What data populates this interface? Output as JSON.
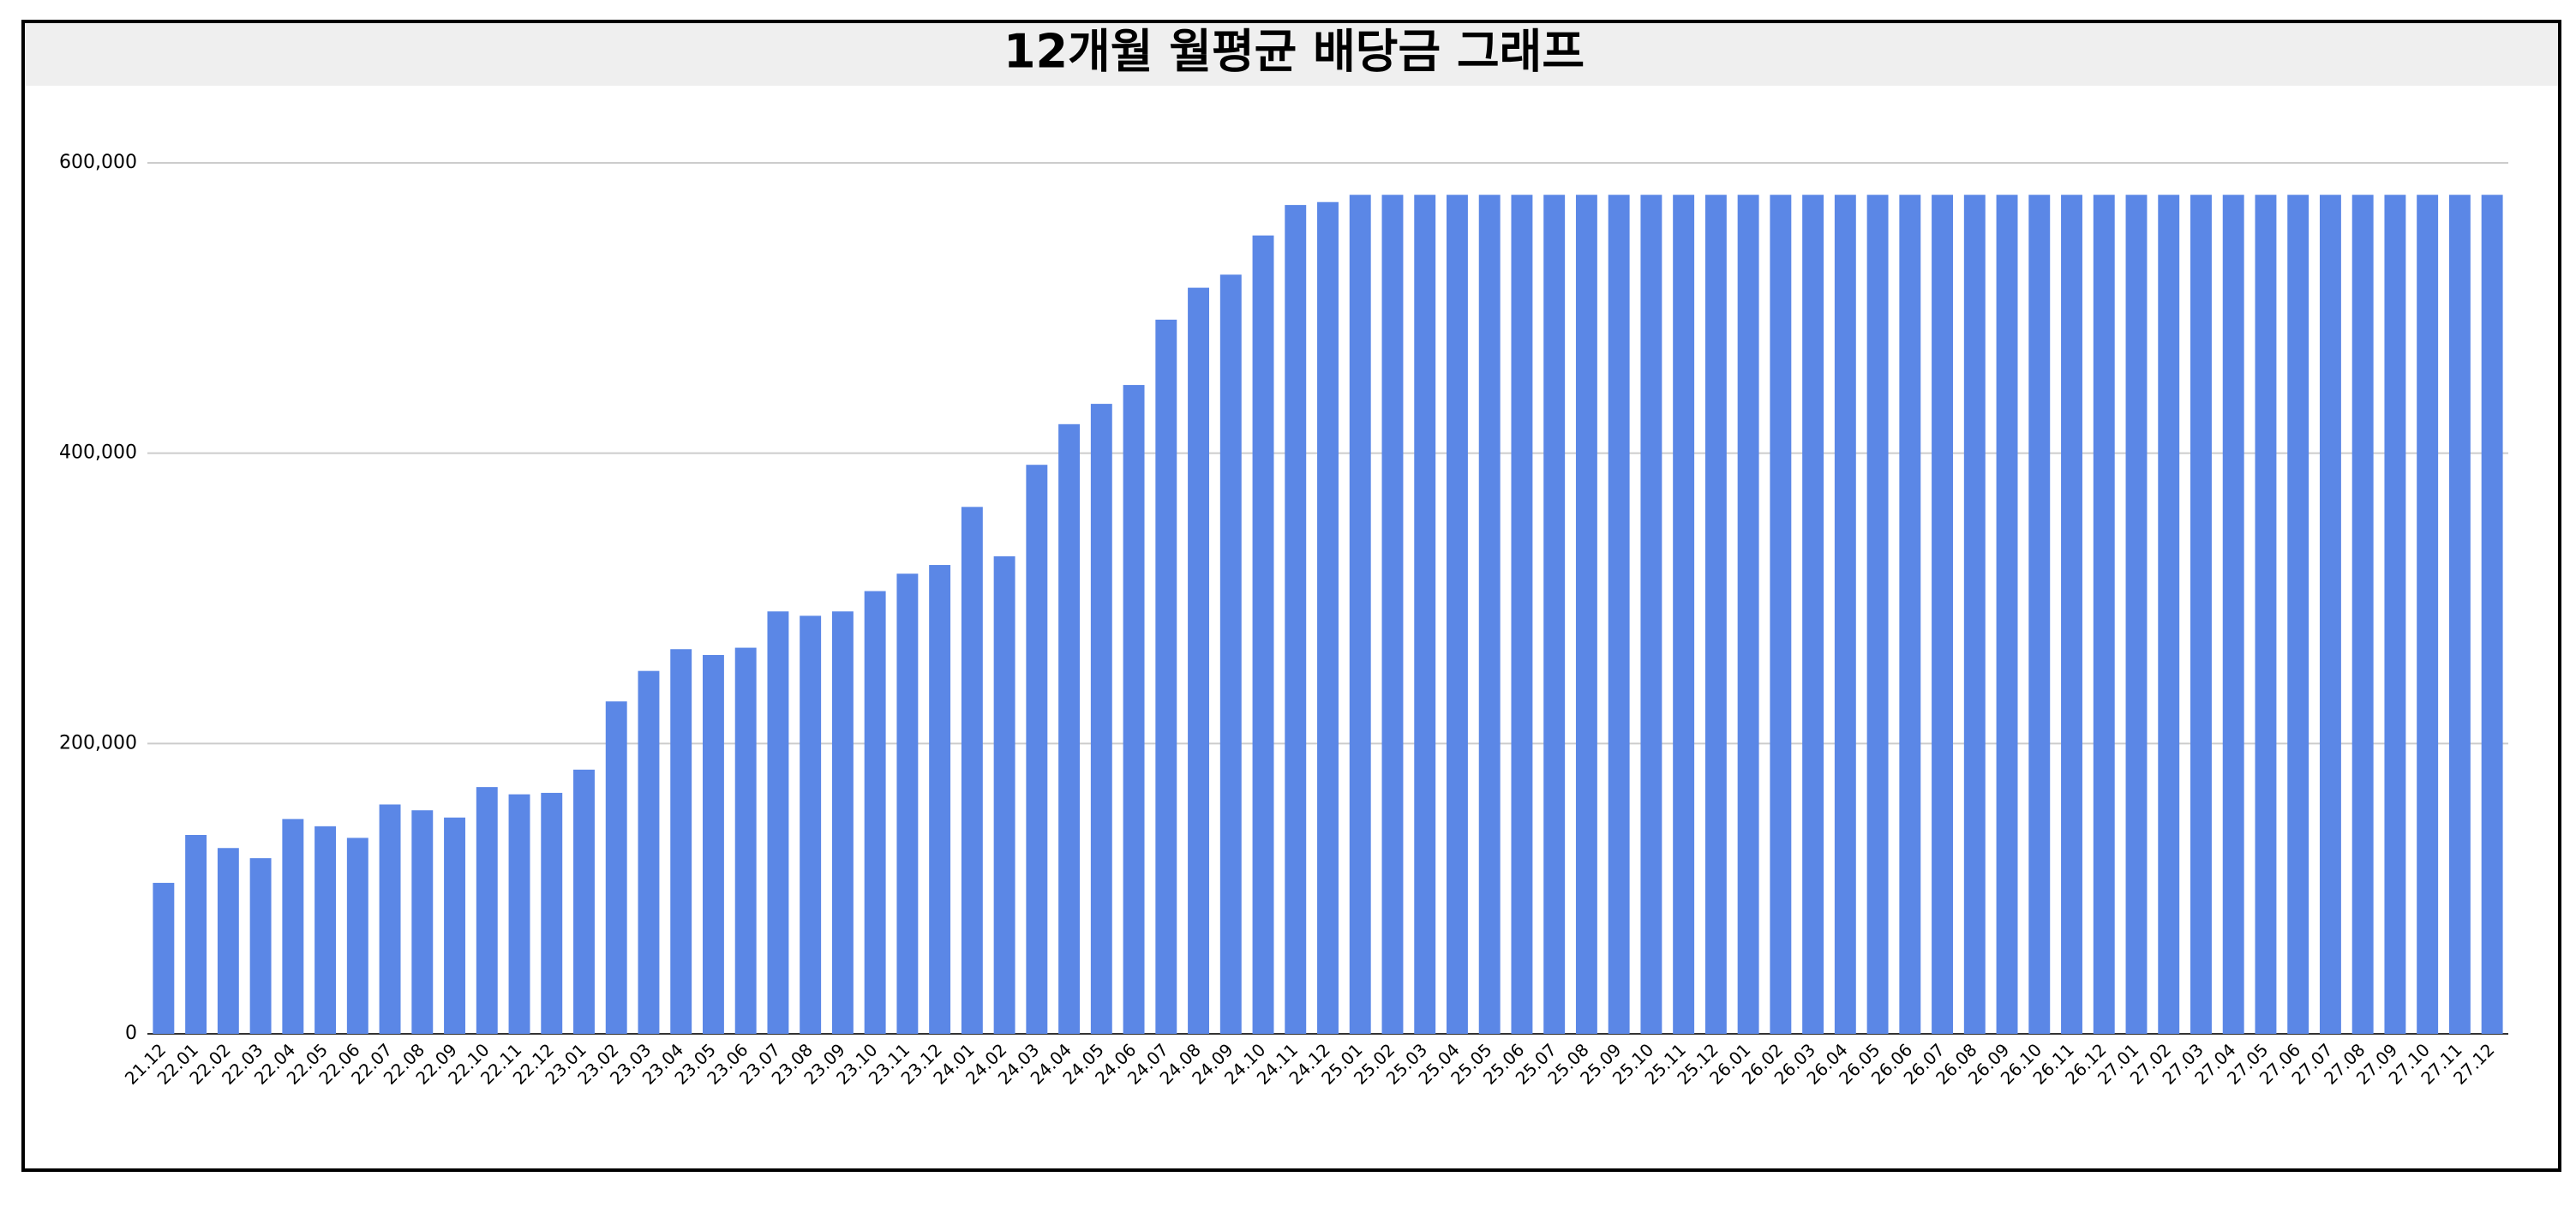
{
  "chart_data": {
    "type": "bar",
    "title": "12개월 월평균 배당금 그래프",
    "categories": [
      "21.12",
      "22.01",
      "22.02",
      "22.03",
      "22.04",
      "22.05",
      "22.06",
      "22.07",
      "22.08",
      "22.09",
      "22.10",
      "22.11",
      "22.12",
      "23.01",
      "23.02",
      "23.03",
      "23.04",
      "23.05",
      "23.06",
      "23.07",
      "23.08",
      "23.09",
      "23.10",
      "23.11",
      "23.12",
      "24.01",
      "24.02",
      "24.03",
      "24.04",
      "24.05",
      "24.06",
      "24.07",
      "24.08",
      "24.09",
      "24.10",
      "24.11",
      "24.12",
      "25.01",
      "25.02",
      "25.03",
      "25.04",
      "25.05",
      "25.06",
      "25.07",
      "25.08",
      "25.09",
      "25.10",
      "25.11",
      "25.12",
      "26.01",
      "26.02",
      "26.03",
      "26.04",
      "26.05",
      "26.06",
      "26.07",
      "26.08",
      "26.09",
      "26.10",
      "26.11",
      "26.12",
      "27.01",
      "27.02",
      "27.03",
      "27.04",
      "27.05",
      "27.06",
      "27.07",
      "27.08",
      "27.09",
      "27.10",
      "27.11",
      "27.12"
    ],
    "values": [
      104000,
      137000,
      128000,
      121000,
      148000,
      143000,
      135000,
      158000,
      154000,
      149000,
      170000,
      165000,
      166000,
      182000,
      229000,
      250000,
      265000,
      261000,
      266000,
      291000,
      288000,
      291000,
      305000,
      317000,
      323000,
      363000,
      329000,
      392000,
      420000,
      434000,
      447000,
      492000,
      514000,
      523000,
      550000,
      571000,
      573000,
      578000,
      578000,
      578000,
      578000,
      578000,
      578000,
      578000,
      578000,
      578000,
      578000,
      578000,
      578000,
      578000,
      578000,
      578000,
      578000,
      578000,
      578000,
      578000,
      578000,
      578000,
      578000,
      578000,
      578000,
      578000,
      578000,
      578000,
      578000,
      578000,
      578000,
      578000,
      578000,
      578000,
      578000,
      578000,
      578000
    ],
    "color": "#5b87e6",
    "ylim": [
      0,
      600000
    ],
    "yticks": [
      0,
      {
        "value": 200000,
        "label": "200,000"
      },
      {
        "value": 400000,
        "label": "400,000"
      },
      {
        "value": 600000,
        "label": "600,000"
      }
    ],
    "grid": true
  }
}
